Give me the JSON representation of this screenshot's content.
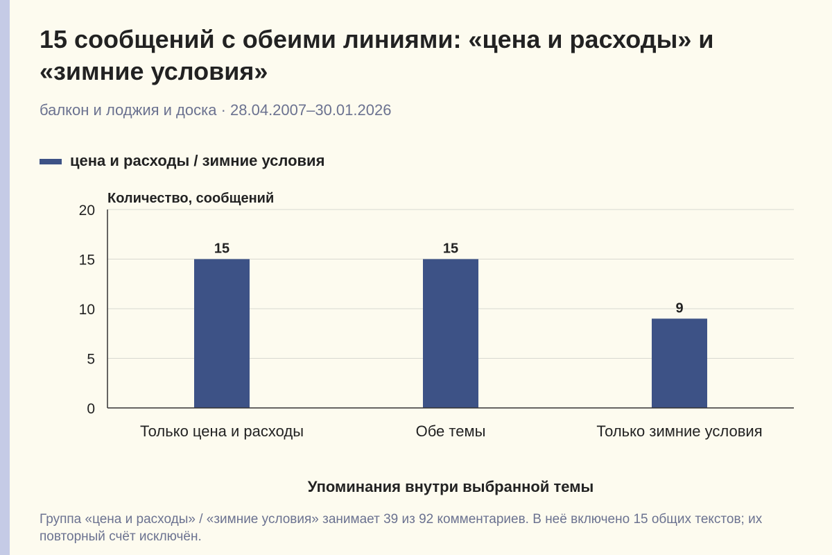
{
  "title": "15 сообщений с обеими линиями: «цена и расходы» и «зимние условия»",
  "subtitle": "балкон и лоджия и доска · 28.04.2007–30.01.2026",
  "footnote": "Группа «цена и расходы» / «зимние условия» занимает 39 из 92 комментариев. В неё включено 15 общих текстов; их повторный счёт исключён.",
  "colors": {
    "bar": "#3d5286",
    "grid": "#d8d8d0",
    "axis": "#333333"
  },
  "chart_data": {
    "type": "bar",
    "categories": [
      "Только цена и расходы",
      "Обе темы",
      "Только зимние условия"
    ],
    "series": [
      {
        "name": "цена и расходы / зимние условия",
        "values": [
          15,
          15,
          9
        ]
      }
    ],
    "ylabel": "Количество, сообщений",
    "xlabel": "Упоминания внутри выбранной темы",
    "ylim": [
      0,
      20
    ],
    "yticks": [
      0,
      5,
      10,
      15,
      20
    ],
    "grid": true,
    "legend": "top-left",
    "data_labels": true
  }
}
